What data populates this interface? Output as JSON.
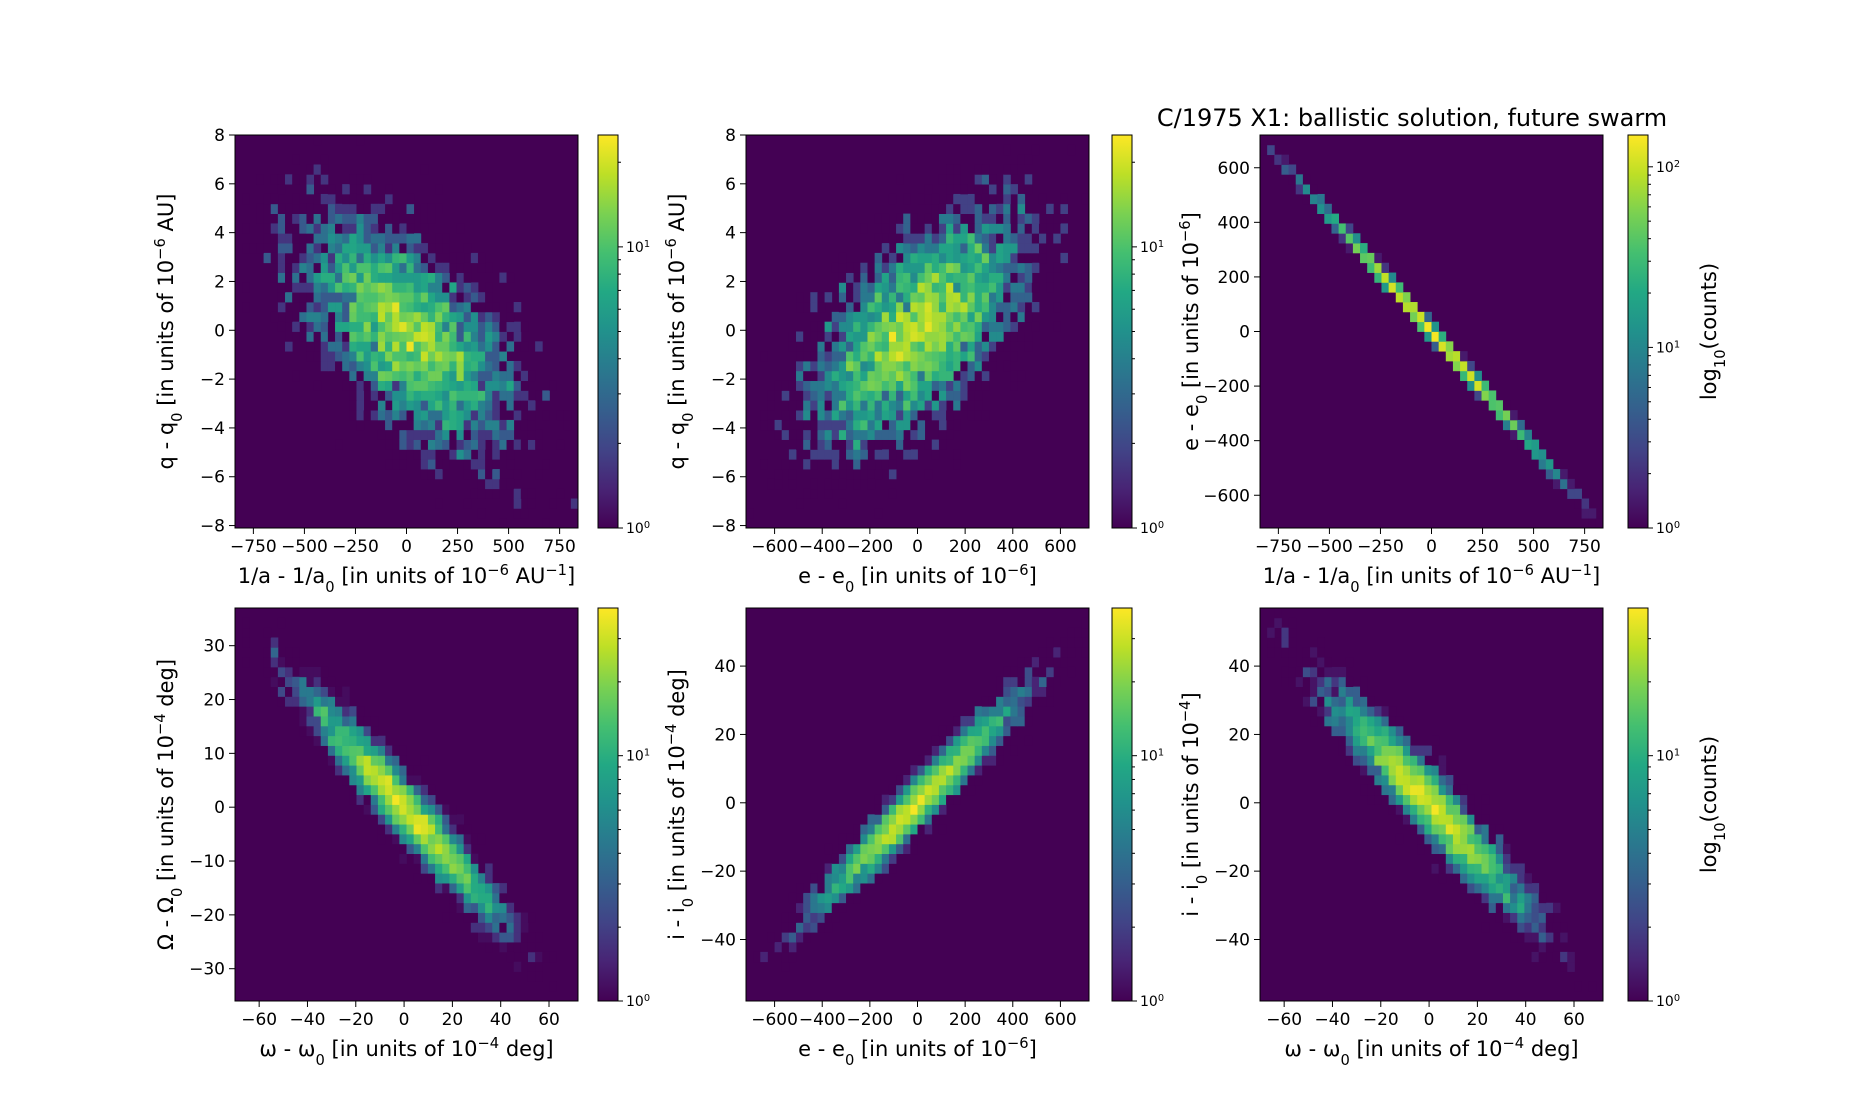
{
  "figure": {
    "title": "C/1975 X1:  ballistic solution, future swarm"
  },
  "colors": {
    "background_bin": "#440154",
    "colormap": "viridis",
    "colormap_stops": [
      "#440154",
      "#482475",
      "#414487",
      "#355f8d",
      "#2a788e",
      "#21918c",
      "#22a884",
      "#44bf70",
      "#7ad151",
      "#bddf26",
      "#fde725"
    ]
  },
  "chart_data": [
    {
      "type": "heatmap",
      "id": "p1",
      "xlabel": "1/a - 1/a0 [in units of 10^-6 AU^-1]",
      "ylabel": "q - q0 [in units of 10^-6 AU]",
      "xlim": [
        -840,
        840
      ],
      "ylim": [
        -8.1,
        8.0
      ],
      "xticks": [
        -750,
        -500,
        -250,
        0,
        250,
        500,
        750
      ],
      "yticks": [
        -8,
        -6,
        -4,
        -2,
        0,
        2,
        4,
        6,
        8
      ],
      "colorbar": {
        "scale": "log",
        "range": [
          1,
          25
        ],
        "ticks": [
          1,
          10
        ],
        "label": ""
      },
      "distribution": {
        "mean_x": 0,
        "mean_y": 0,
        "sd_x": 260,
        "sd_y": 2.4,
        "correlation": -0.6,
        "n_points": 4000,
        "peak_count": 23
      }
    },
    {
      "type": "heatmap",
      "id": "p2",
      "xlabel": "e - e0 [in units of 10^-6]",
      "ylabel": "q - q0 [in units of 10^-6 AU]",
      "xlim": [
        -720,
        720
      ],
      "ylim": [
        -8.1,
        8.0
      ],
      "xticks": [
        -600,
        -400,
        -200,
        0,
        200,
        400,
        600
      ],
      "yticks": [
        -8,
        -6,
        -4,
        -2,
        0,
        2,
        4,
        6,
        8
      ],
      "colorbar": {
        "scale": "log",
        "range": [
          1,
          25
        ],
        "ticks": [
          1,
          10
        ],
        "label": ""
      },
      "distribution": {
        "mean_x": 0,
        "mean_y": 0,
        "sd_x": 220,
        "sd_y": 2.4,
        "correlation": 0.6,
        "n_points": 4000,
        "peak_count": 24
      }
    },
    {
      "type": "heatmap",
      "id": "p3",
      "xlabel": "1/a - 1/a0 [in units of 10^-6 AU^-1]",
      "ylabel": "e - e0 [in units of 10^-6]",
      "xlim": [
        -840,
        840
      ],
      "ylim": [
        -720,
        720
      ],
      "xticks": [
        -750,
        -500,
        -250,
        0,
        250,
        500,
        750
      ],
      "yticks": [
        -600,
        -400,
        -200,
        0,
        200,
        400,
        600
      ],
      "colorbar": {
        "scale": "log",
        "range": [
          1,
          150
        ],
        "ticks": [
          1,
          10,
          100
        ],
        "label": "log10(counts)"
      },
      "distribution": {
        "mean_x": 0,
        "mean_y": 0,
        "sd_x": 260,
        "sd_y": 222,
        "correlation": -0.9995,
        "n_points": 4000,
        "peak_count": 140
      }
    },
    {
      "type": "heatmap",
      "id": "p4",
      "xlabel": "ω - ω0 [in units of 10^-4 deg]",
      "ylabel": "Ω - Ω0 [in units of 10^-4 deg]",
      "xlim": [
        -70,
        72
      ],
      "ylim": [
        -36,
        37
      ],
      "xticks": [
        -60,
        -40,
        -20,
        0,
        20,
        40,
        60
      ],
      "yticks": [
        -30,
        -20,
        -10,
        0,
        10,
        20,
        30
      ],
      "colorbar": {
        "scale": "log",
        "range": [
          1,
          40
        ],
        "ticks": [
          1,
          10
        ],
        "label": ""
      },
      "distribution": {
        "mean_x": 0,
        "mean_y": 0,
        "sd_x": 20,
        "sd_y": 10.5,
        "correlation": -0.96,
        "n_points": 4000,
        "peak_count": 38
      }
    },
    {
      "type": "heatmap",
      "id": "p5",
      "xlabel": "e - e0 [in units of 10^-6]",
      "ylabel": "i - i0 [in units of 10^-4 deg]",
      "xlim": [
        -720,
        720
      ],
      "ylim": [
        -58,
        57
      ],
      "xticks": [
        -600,
        -400,
        -200,
        0,
        200,
        400,
        600
      ],
      "yticks": [
        -40,
        -20,
        0,
        20,
        40
      ],
      "colorbar": {
        "scale": "log",
        "range": [
          1,
          40
        ],
        "ticks": [
          1,
          10
        ],
        "label": ""
      },
      "distribution": {
        "mean_x": 0,
        "mean_y": 0,
        "sd_x": 220,
        "sd_y": 16,
        "correlation": 0.97,
        "n_points": 4000,
        "peak_count": 38
      }
    },
    {
      "type": "heatmap",
      "id": "p6",
      "xlabel": "ω - ω0 [in units of 10^-4 deg]",
      "ylabel": "i - i0 [in units of 10^-4]",
      "xlim": [
        -70,
        72
      ],
      "ylim": [
        -58,
        57
      ],
      "xticks": [
        -60,
        -40,
        -20,
        0,
        20,
        40,
        60
      ],
      "yticks": [
        -40,
        -20,
        0,
        20,
        40
      ],
      "colorbar": {
        "scale": "log",
        "range": [
          1,
          40
        ],
        "ticks": [
          1,
          10
        ],
        "label": "log10(counts)"
      },
      "distribution": {
        "mean_x": 0,
        "mean_y": 0,
        "sd_x": 20,
        "sd_y": 16,
        "correlation": -0.95,
        "n_points": 4000,
        "peak_count": 38
      }
    }
  ]
}
